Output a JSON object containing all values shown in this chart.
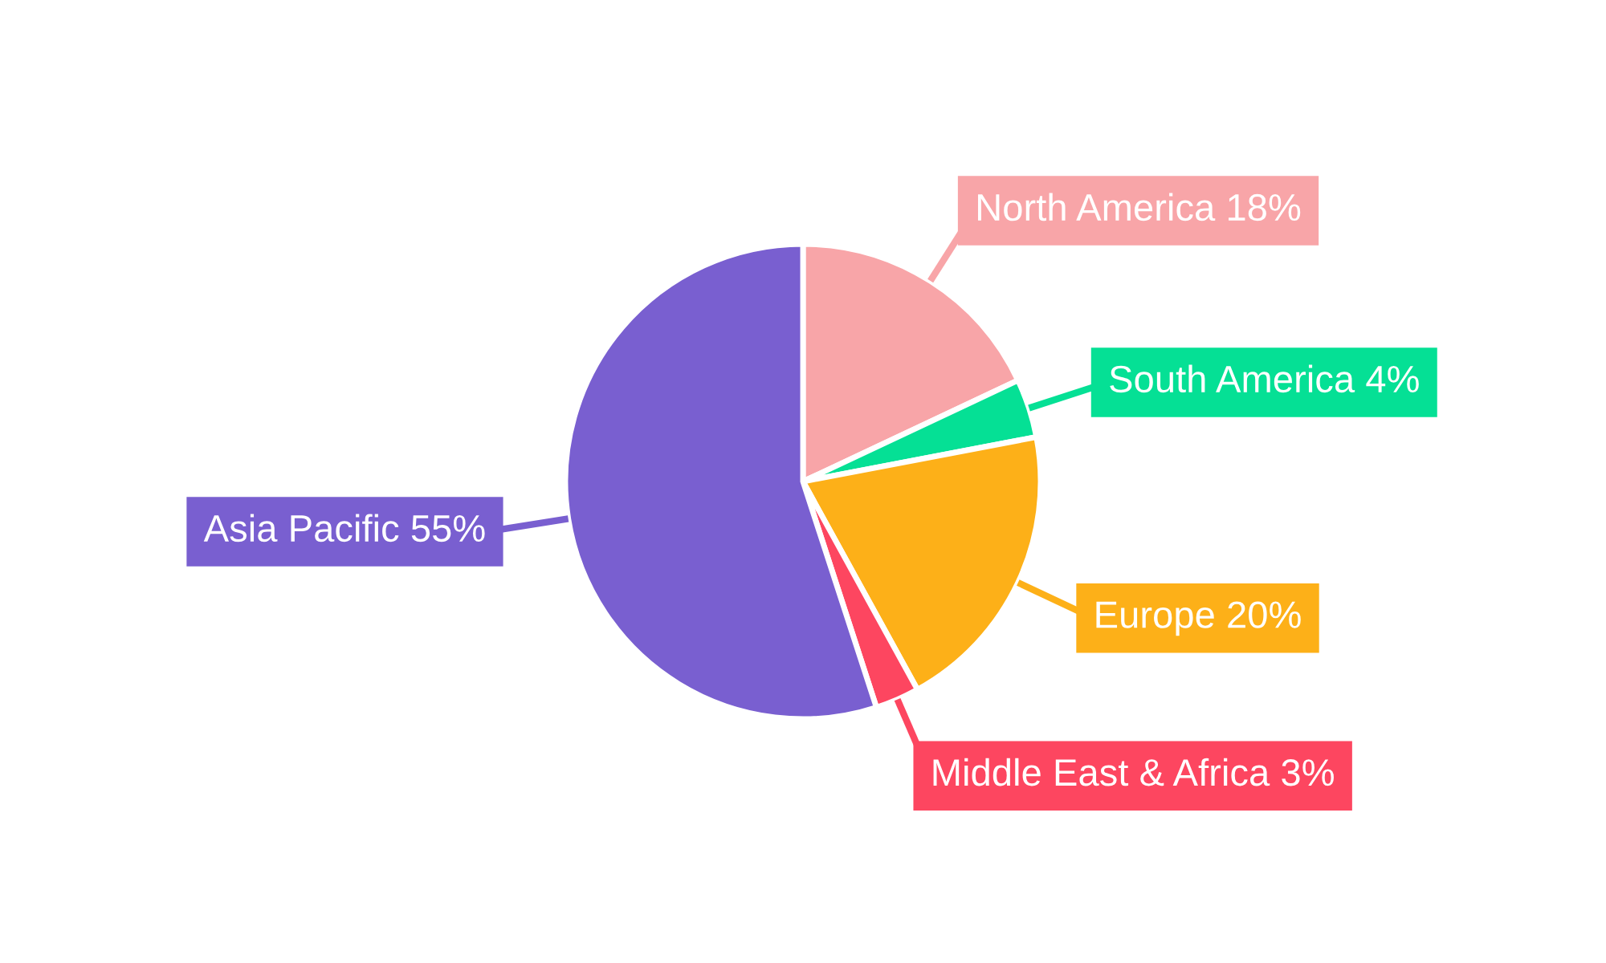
{
  "chart_data": {
    "type": "pie",
    "categories": [
      "North America",
      "South America",
      "Europe",
      "Middle East & Africa",
      "Asia Pacific"
    ],
    "values": [
      18,
      4,
      20,
      3,
      55
    ],
    "value_labels": [
      "18%",
      "4%",
      "20%",
      "3%",
      "55%"
    ],
    "colors": [
      "#f8a5a8",
      "#05e095",
      "#fdb018",
      "#fd4660",
      "#795fd0"
    ],
    "legend": false
  }
}
